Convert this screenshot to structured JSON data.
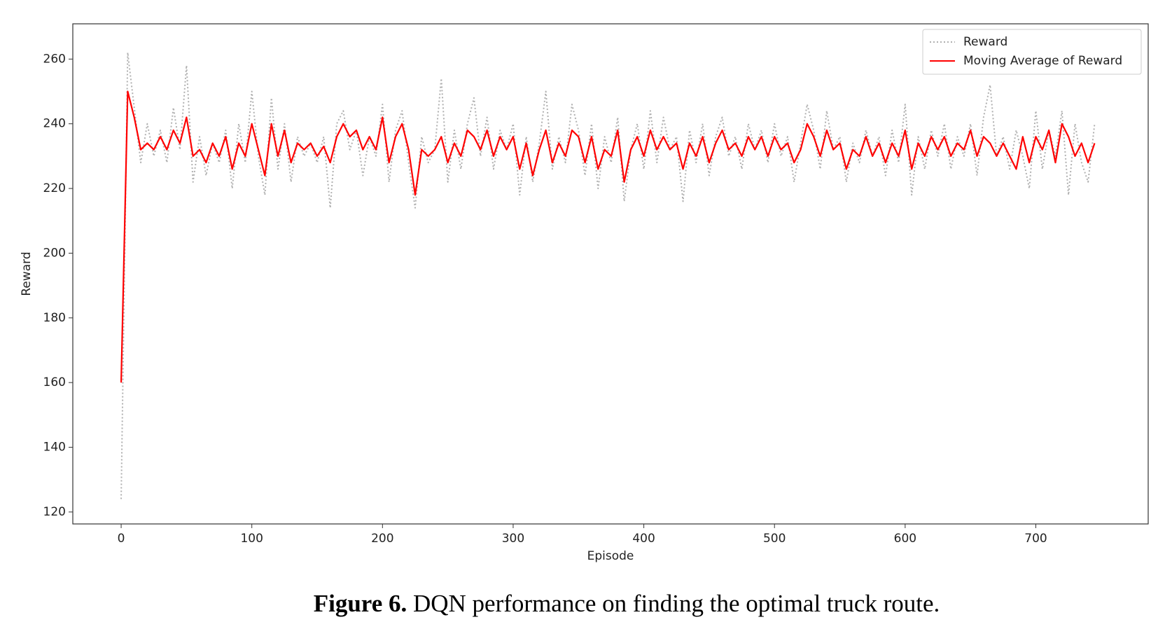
{
  "chart_data": {
    "type": "line",
    "xlabel": "Episode",
    "ylabel": "Reward",
    "x": [
      0,
      5,
      10,
      15,
      20,
      25,
      30,
      35,
      40,
      45,
      50,
      55,
      60,
      65,
      70,
      75,
      80,
      85,
      90,
      95,
      100,
      105,
      110,
      115,
      120,
      125,
      130,
      135,
      140,
      145,
      150,
      155,
      160,
      165,
      170,
      175,
      180,
      185,
      190,
      195,
      200,
      205,
      210,
      215,
      220,
      225,
      230,
      235,
      240,
      245,
      250,
      255,
      260,
      265,
      270,
      275,
      280,
      285,
      290,
      295,
      300,
      305,
      310,
      315,
      320,
      325,
      330,
      335,
      340,
      345,
      350,
      355,
      360,
      365,
      370,
      375,
      380,
      385,
      390,
      395,
      400,
      405,
      410,
      415,
      420,
      425,
      430,
      435,
      440,
      445,
      450,
      455,
      460,
      465,
      470,
      475,
      480,
      485,
      490,
      495,
      500,
      505,
      510,
      515,
      520,
      525,
      530,
      535,
      540,
      545,
      550,
      555,
      560,
      565,
      570,
      575,
      580,
      585,
      590,
      595,
      600,
      605,
      610,
      615,
      620,
      625,
      630,
      635,
      640,
      645,
      650,
      655,
      660,
      665,
      670,
      675,
      680,
      685,
      690,
      695,
      700,
      705,
      710,
      715,
      720,
      725,
      730,
      735,
      740,
      745
    ],
    "series": [
      {
        "name": "Reward",
        "color": "#b0b0b0",
        "style": "dotted",
        "values": [
          124,
          262,
          245,
          228,
          240,
          230,
          238,
          228,
          245,
          232,
          258,
          222,
          236,
          224,
          234,
          228,
          238,
          220,
          240,
          228,
          250,
          230,
          218,
          248,
          226,
          240,
          222,
          236,
          230,
          234,
          228,
          236,
          214,
          240,
          244,
          232,
          238,
          224,
          236,
          230,
          246,
          222,
          238,
          244,
          228,
          214,
          236,
          228,
          232,
          254,
          222,
          238,
          226,
          240,
          248,
          230,
          242,
          226,
          238,
          232,
          240,
          218,
          236,
          222,
          234,
          250,
          226,
          236,
          228,
          246,
          238,
          224,
          240,
          220,
          236,
          228,
          242,
          216,
          232,
          240,
          226,
          244,
          228,
          242,
          232,
          236,
          216,
          238,
          228,
          240,
          224,
          236,
          242,
          230,
          236,
          226,
          240,
          232,
          238,
          228,
          240,
          230,
          236,
          222,
          234,
          246,
          238,
          226,
          244,
          232,
          236,
          222,
          234,
          228,
          238,
          230,
          236,
          224,
          238,
          228,
          246,
          218,
          236,
          226,
          238,
          230,
          240,
          226,
          236,
          230,
          240,
          224,
          242,
          252,
          230,
          236,
          226,
          238,
          230,
          220,
          244,
          226,
          238,
          230,
          244,
          218,
          240,
          228,
          222,
          240
        ]
      },
      {
        "name": "Moving Average of Reward",
        "color": "#ff0000",
        "style": "solid",
        "values": [
          160,
          250,
          242,
          232,
          234,
          232,
          236,
          232,
          238,
          234,
          242,
          230,
          232,
          228,
          234,
          230,
          236,
          226,
          234,
          230,
          240,
          232,
          224,
          240,
          230,
          238,
          228,
          234,
          232,
          234,
          230,
          233,
          228,
          236,
          240,
          236,
          238,
          232,
          236,
          232,
          242,
          228,
          236,
          240,
          232,
          218,
          232,
          230,
          232,
          236,
          228,
          234,
          230,
          238,
          236,
          232,
          238,
          230,
          236,
          232,
          236,
          226,
          234,
          224,
          232,
          238,
          228,
          234,
          230,
          238,
          236,
          228,
          236,
          226,
          232,
          230,
          238,
          222,
          232,
          236,
          230,
          238,
          232,
          236,
          232,
          234,
          226,
          234,
          230,
          236,
          228,
          234,
          238,
          232,
          234,
          230,
          236,
          232,
          236,
          230,
          236,
          232,
          234,
          228,
          232,
          240,
          236,
          230,
          238,
          232,
          234,
          226,
          232,
          230,
          236,
          230,
          234,
          228,
          234,
          230,
          238,
          226,
          234,
          230,
          236,
          232,
          236,
          230,
          234,
          232,
          238,
          230,
          236,
          234,
          230,
          234,
          230,
          226,
          236,
          228,
          236,
          232,
          238,
          228,
          240,
          236,
          230,
          234,
          228,
          234
        ]
      }
    ],
    "xlim": [
      -37,
      786
    ],
    "xticks": [
      0,
      100,
      200,
      300,
      400,
      500,
      600,
      700
    ],
    "ylim": [
      116.3,
      270.9
    ],
    "yticks": [
      120,
      140,
      160,
      180,
      200,
      220,
      240,
      260
    ],
    "grid": false,
    "legend": "upper right"
  },
  "caption": {
    "label": "Figure 6.",
    "text": "DQN performance on finding the optimal truck route."
  }
}
